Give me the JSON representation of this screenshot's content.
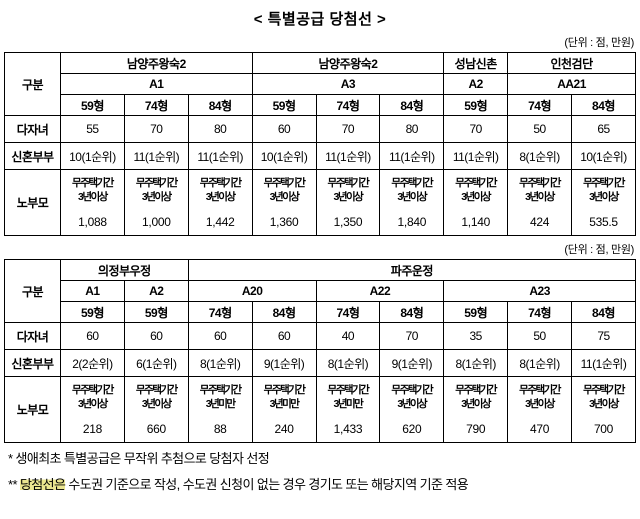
{
  "page": {
    "title": "<  특별공급  당첨선  >"
  },
  "table1": {
    "unit_note": "(단위 : 점, 만원)",
    "corner": "구분",
    "regions": [
      {
        "name": "남양주왕숙2",
        "span": 3
      },
      {
        "name": "남양주왕숙2",
        "span": 3
      },
      {
        "name": "성남신촌",
        "span": 1
      },
      {
        "name": "인천검단",
        "span": 2
      }
    ],
    "codes": [
      {
        "label": "A1",
        "span": 3
      },
      {
        "label": "A3",
        "span": 3
      },
      {
        "label": "A2",
        "span": 1
      },
      {
        "label": "AA21",
        "span": 2
      }
    ],
    "unit_types": [
      "59형",
      "74형",
      "84형",
      "59형",
      "74형",
      "84형",
      "59형",
      "74형",
      "84형"
    ],
    "rows": {
      "daja": {
        "label": "다자녀",
        "values": [
          "55",
          "70",
          "80",
          "60",
          "70",
          "80",
          "70",
          "50",
          "65"
        ]
      },
      "shinhon": {
        "label": "신혼부부",
        "values": [
          "10(1순위)",
          "11(1순위)",
          "11(1순위)",
          "10(1순위)",
          "11(1순위)",
          "11(1순위)",
          "11(1순위)",
          "8(1순위)",
          "10(1순위)"
        ]
      },
      "nobumo": {
        "label": "노부모",
        "cells": [
          {
            "cond1": "무주택기간",
            "cond2": "3년이상",
            "value": "1,088"
          },
          {
            "cond1": "무주택기간",
            "cond2": "3년이상",
            "value": "1,000"
          },
          {
            "cond1": "무주택기간",
            "cond2": "3년이상",
            "value": "1,442"
          },
          {
            "cond1": "무주택기간",
            "cond2": "3년이상",
            "value": "1,360"
          },
          {
            "cond1": "무주택기간",
            "cond2": "3년이상",
            "value": "1,350"
          },
          {
            "cond1": "무주택기간",
            "cond2": "3년이상",
            "value": "1,840"
          },
          {
            "cond1": "무주택기간",
            "cond2": "3년이상",
            "value": "1,140"
          },
          {
            "cond1": "무주택기간",
            "cond2": "3년이상",
            "value": "424"
          },
          {
            "cond1": "무주택기간",
            "cond2": "3년이상",
            "value": "535.5"
          }
        ]
      }
    }
  },
  "table2": {
    "unit_note": "(단위 : 점, 만원)",
    "corner": "구분",
    "regions": [
      {
        "name": "의정부우정",
        "span": 2
      },
      {
        "name": "파주운정",
        "span": 7
      }
    ],
    "codes": [
      {
        "label": "A1",
        "span": 1
      },
      {
        "label": "A2",
        "span": 1
      },
      {
        "label": "A20",
        "span": 2
      },
      {
        "label": "A22",
        "span": 2
      },
      {
        "label": "A23",
        "span": 3
      }
    ],
    "unit_types": [
      "59형",
      "59형",
      "74형",
      "84형",
      "74형",
      "84형",
      "59형",
      "74형",
      "84형"
    ],
    "rows": {
      "daja": {
        "label": "다자녀",
        "values": [
          "60",
          "60",
          "60",
          "60",
          "40",
          "70",
          "35",
          "50",
          "75"
        ]
      },
      "shinhon": {
        "label": "신혼부부",
        "values": [
          "2(2순위)",
          "6(1순위)",
          "8(1순위)",
          "9(1순위)",
          "8(1순위)",
          "9(1순위)",
          "8(1순위)",
          "8(1순위)",
          "11(1순위)"
        ]
      },
      "nobumo": {
        "label": "노부모",
        "cells": [
          {
            "cond1": "무주택기간",
            "cond2": "3년이상",
            "value": "218"
          },
          {
            "cond1": "무주택기간",
            "cond2": "3년이상",
            "value": "660"
          },
          {
            "cond1": "무주택기간",
            "cond2": "3년미만",
            "value": "88"
          },
          {
            "cond1": "무주택기간",
            "cond2": "3년미만",
            "value": "240"
          },
          {
            "cond1": "무주택기간",
            "cond2": "3년미만",
            "value": "1,433"
          },
          {
            "cond1": "무주택기간",
            "cond2": "3년이상",
            "value": "620"
          },
          {
            "cond1": "무주택기간",
            "cond2": "3년이상",
            "value": "790"
          },
          {
            "cond1": "무주택기간",
            "cond2": "3년이상",
            "value": "470"
          },
          {
            "cond1": "무주택기간",
            "cond2": "3년이상",
            "value": "700"
          }
        ]
      }
    }
  },
  "footnotes": {
    "note1": "*  생애최초 특별공급은 무작위 추첨으로 당첨자 선정",
    "note2_marker": "** ",
    "note2_highlight": "당첨선은",
    "note2_rest": " 수도권 기준으로 작성, 수도권 신청이 없는 경우 경기도 또는 해당지역 기준 적용"
  }
}
